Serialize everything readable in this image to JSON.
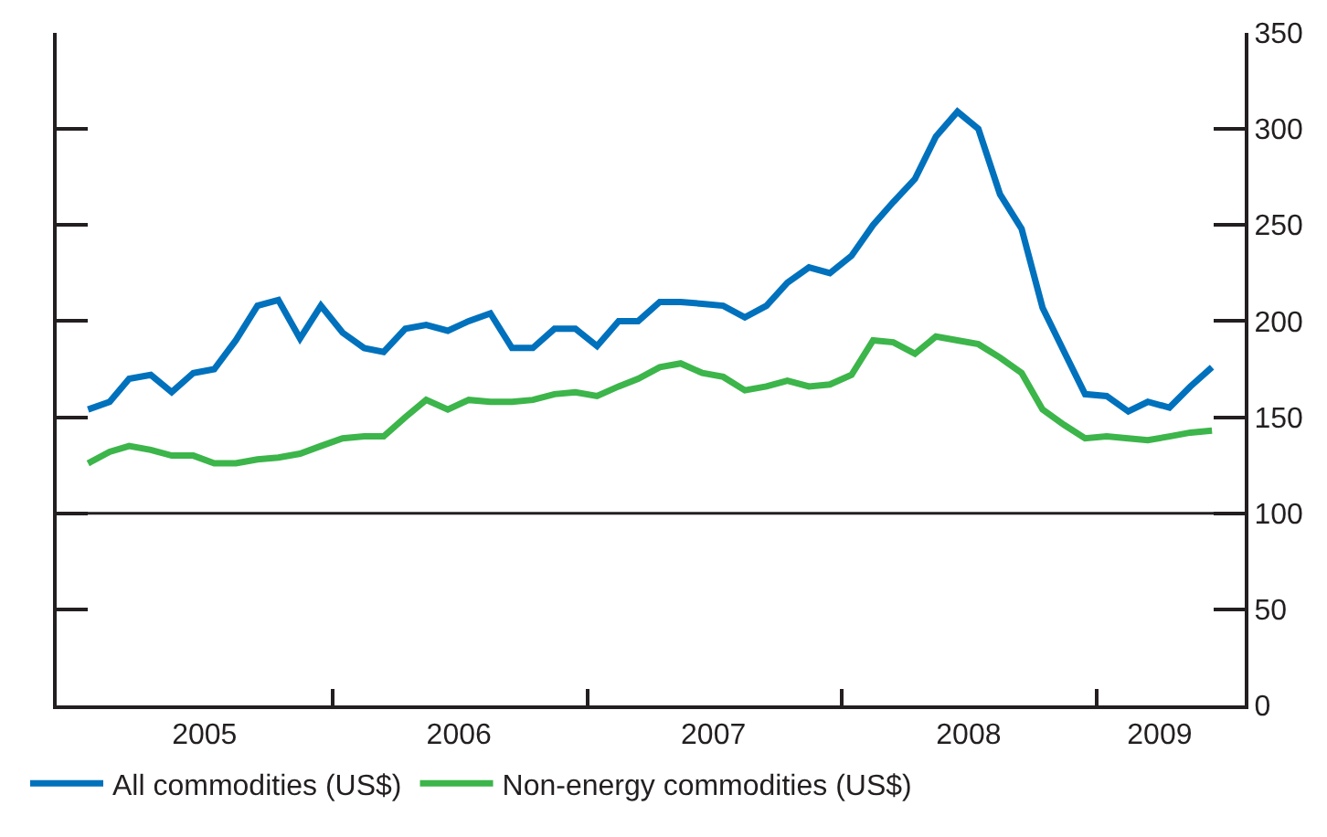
{
  "chart_data": {
    "type": "line",
    "x": [
      "2005-01-15",
      "2005-02-15",
      "2005-03-15",
      "2005-04-15",
      "2005-05-15",
      "2005-06-15",
      "2005-07-15",
      "2005-08-15",
      "2005-09-15",
      "2005-10-15",
      "2005-11-15",
      "2005-12-15",
      "2006-01-15",
      "2006-02-15",
      "2006-03-15",
      "2006-04-15",
      "2006-05-15",
      "2006-06-15",
      "2006-07-15",
      "2006-08-15",
      "2006-09-15",
      "2006-10-15",
      "2006-11-15",
      "2006-12-15",
      "2007-01-15",
      "2007-02-15",
      "2007-03-15",
      "2007-04-15",
      "2007-05-15",
      "2007-06-15",
      "2007-07-15",
      "2007-08-15",
      "2007-09-15",
      "2007-10-15",
      "2007-11-15",
      "2007-12-15",
      "2008-01-15",
      "2008-02-15",
      "2008-03-15",
      "2008-04-15",
      "2008-05-15",
      "2008-06-15",
      "2008-07-15",
      "2008-08-15",
      "2008-09-15",
      "2008-10-15",
      "2008-11-15",
      "2008-12-15",
      "2009-01-15",
      "2009-02-15",
      "2009-03-15",
      "2009-04-15",
      "2009-05-15",
      "2009-06-15"
    ],
    "series": [
      {
        "name": "All commodities (US$)",
        "color": "#0071bc",
        "values": [
          154,
          158,
          170,
          172,
          163,
          173,
          175,
          190,
          208,
          211,
          191,
          208,
          194,
          186,
          184,
          196,
          198,
          195,
          200,
          204,
          186,
          186,
          196,
          196,
          187,
          200,
          200,
          210,
          210,
          209,
          208,
          202,
          208,
          220,
          228,
          225,
          234,
          250,
          262,
          274,
          296,
          309,
          300,
          266,
          248,
          207,
          184,
          162,
          161,
          153,
          158,
          155,
          166,
          176
        ]
      },
      {
        "name": "Non-energy commodities (US$)",
        "color": "#3cb54a",
        "values": [
          126,
          132,
          135,
          133,
          130,
          130,
          126,
          126,
          128,
          129,
          131,
          135,
          139,
          140,
          140,
          150,
          159,
          154,
          159,
          158,
          158,
          159,
          162,
          163,
          161,
          166,
          170,
          176,
          178,
          173,
          171,
          164,
          166,
          169,
          166,
          167,
          172,
          190,
          189,
          183,
          192,
          190,
          188,
          181,
          173,
          154,
          146,
          139,
          140,
          139,
          138,
          140,
          142,
          143
        ]
      }
    ],
    "xlim": [
      "2004-12-01",
      "2009-08-01"
    ],
    "xticks": [
      {
        "value": "2005-07-01",
        "label": "2005"
      },
      {
        "value": "2006-07-01",
        "label": "2006"
      },
      {
        "value": "2007-07-01",
        "label": "2007"
      },
      {
        "value": "2008-07-01",
        "label": "2008"
      },
      {
        "value": "2009-04-01",
        "label": "2009"
      },
      {
        "value": "2006-01-01",
        "label": null
      },
      {
        "value": "2007-01-01",
        "label": null
      },
      {
        "value": "2008-01-01",
        "label": null
      },
      {
        "value": "2009-01-01",
        "label": null
      }
    ],
    "ylim": [
      0,
      350
    ],
    "yticks": [
      0,
      50,
      100,
      150,
      200,
      250,
      300,
      350
    ],
    "ref_lines": [
      {
        "axis": "y",
        "value": 100,
        "color": "#231f20"
      }
    ],
    "legend": "bottom left",
    "marker": "none",
    "line_style": "solid"
  }
}
